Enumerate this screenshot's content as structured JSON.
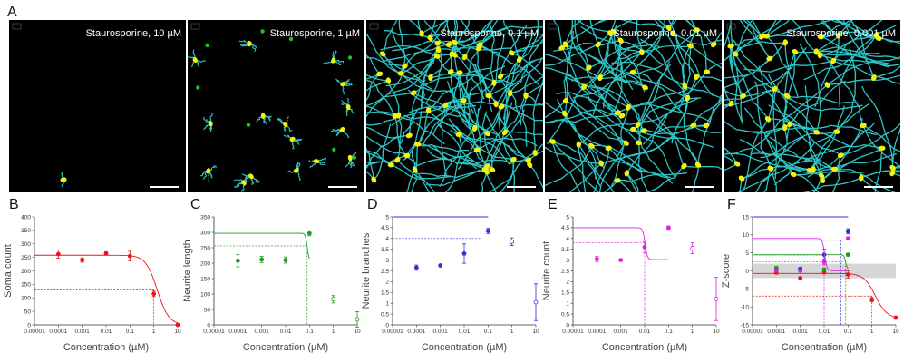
{
  "figure_letter_top": "A",
  "micrographs": [
    {
      "letter": "",
      "caption": "Staurosporine, 10 µM",
      "density": 0
    },
    {
      "letter": "",
      "caption": "Staurosporine, 1 µM",
      "density": 1
    },
    {
      "letter": "",
      "caption": "Staurosporine, 0.1 µM",
      "density": 2
    },
    {
      "letter": "",
      "caption": "Staurosporine, 0.01 µM",
      "density": 3
    },
    {
      "letter": "",
      "caption": "Staurosporine, 0.001 µM",
      "density": 4
    }
  ],
  "colors": {
    "neurite": "#2ec4c4",
    "soma": "#f2f20a",
    "nucleus": "#22c22a",
    "image_bg": "#000000",
    "red": "#e8161b",
    "green": "#1f9a1f",
    "blue": "#2b34d8",
    "magenta": "#e020e0"
  },
  "chart_data": [
    {
      "panel": "B",
      "type": "scatter",
      "ylabel": "Soma count",
      "xlabel": "Concentration (µM)",
      "x_scale": "log",
      "xticks": [
        "0.00001",
        "0.0001",
        "0.001",
        "0.01",
        "0.1",
        "1",
        "10"
      ],
      "yticks": [
        0,
        50,
        100,
        150,
        200,
        250,
        300,
        350,
        400
      ],
      "ylim": [
        0,
        400
      ],
      "series": [
        {
          "color": "#e8161b",
          "points": [
            {
              "x": 0.0001,
              "y": 262,
              "err": 15,
              "open": false
            },
            {
              "x": 0.001,
              "y": 240,
              "err": 8,
              "open": false
            },
            {
              "x": 0.01,
              "y": 265,
              "err": 5,
              "open": false
            },
            {
              "x": 0.1,
              "y": 255,
              "err": 18,
              "open": false
            },
            {
              "x": 1,
              "y": 115,
              "err": 10,
              "open": false
            },
            {
              "x": 10,
              "y": 0,
              "err": 0,
              "open": false
            }
          ],
          "fit": {
            "top": 258,
            "bottom": 0,
            "ec50": 1.4,
            "hill": 1.8
          }
        }
      ],
      "ref_lines": [
        {
          "color": "#e8161b",
          "h": 129,
          "vx": 1
        }
      ]
    },
    {
      "panel": "C",
      "type": "scatter",
      "ylabel": "Neurite length",
      "xlabel": "Concentration (µM)",
      "x_scale": "log",
      "xticks": [
        "0.00001",
        "0.0001",
        "0.001",
        "0.01",
        "0.1",
        "1",
        "10"
      ],
      "yticks": [
        0,
        50,
        100,
        150,
        200,
        250,
        300,
        350
      ],
      "ylim": [
        0,
        350
      ],
      "series": [
        {
          "color": "#1f9a1f",
          "points": [
            {
              "x": 0.0001,
              "y": 208,
              "err": 20,
              "open": false
            },
            {
              "x": 0.001,
              "y": 212,
              "err": 10,
              "open": false
            },
            {
              "x": 0.01,
              "y": 210,
              "err": 10,
              "open": false
            },
            {
              "x": 0.1,
              "y": 297,
              "err": 8,
              "open": false
            },
            {
              "x": 1,
              "y": 83,
              "err": 12,
              "open": true
            },
            {
              "x": 10,
              "y": 18,
              "err": 25,
              "open": true
            }
          ],
          "fit": {
            "top": 297,
            "bottom": 210,
            "ec50": 0.08,
            "hill": 12,
            "xmax": 0.1
          }
        }
      ],
      "ref_lines": [
        {
          "color": "#1f9a1f",
          "h": 256,
          "vx": 0.08
        }
      ]
    },
    {
      "panel": "D",
      "type": "scatter",
      "ylabel": "Neurite branches",
      "xlabel": "Concentration (µM)",
      "x_scale": "log",
      "xticks": [
        "0.00001",
        "0.0001",
        "0.001",
        "0.01",
        "0.1",
        "1",
        "10"
      ],
      "yticks": [
        0,
        0.5,
        1,
        1.5,
        2,
        2.5,
        3,
        3.5,
        4,
        4.5,
        5
      ],
      "ylim": [
        0,
        5
      ],
      "series": [
        {
          "color": "#2b34d8",
          "points": [
            {
              "x": 0.0001,
              "y": 2.65,
              "err": 0.12,
              "open": false
            },
            {
              "x": 0.001,
              "y": 2.75,
              "err": 0.04,
              "open": false
            },
            {
              "x": 0.01,
              "y": 3.3,
              "err": 0.45,
              "open": false
            },
            {
              "x": 0.1,
              "y": 4.35,
              "err": 0.12,
              "open": false
            },
            {
              "x": 1,
              "y": 3.85,
              "err": 0.18,
              "open": true
            },
            {
              "x": 10,
              "y": 1.05,
              "err": 0.85,
              "open": true
            }
          ],
          "fit": {
            "top": 6.5,
            "bottom": 2.6,
            "ec50": 0.35,
            "hill": 0.7,
            "xmax": 0.1
          }
        }
      ],
      "ref_lines": [
        {
          "color": "#2b34d8",
          "h": 4.0,
          "vx": 0.05
        }
      ]
    },
    {
      "panel": "E",
      "type": "scatter",
      "ylabel": "Neurite count",
      "xlabel": "Concentration (µM)",
      "x_scale": "log",
      "xticks": [
        "0.00001",
        "0.0001",
        "0.001",
        "0.01",
        "0.1",
        "1",
        "10"
      ],
      "yticks": [
        0,
        0.5,
        1,
        1.5,
        2,
        2.5,
        3,
        3.5,
        4,
        4.5,
        5
      ],
      "ylim": [
        0,
        5
      ],
      "series": [
        {
          "color": "#e020e0",
          "points": [
            {
              "x": 0.0001,
              "y": 3.05,
              "err": 0.12,
              "open": false
            },
            {
              "x": 0.001,
              "y": 3.0,
              "err": 0.04,
              "open": false
            },
            {
              "x": 0.01,
              "y": 3.6,
              "err": 0.25,
              "open": false
            },
            {
              "x": 0.1,
              "y": 4.5,
              "err": 0.08,
              "open": false
            },
            {
              "x": 1,
              "y": 3.55,
              "err": 0.25,
              "open": true
            },
            {
              "x": 10,
              "y": 1.2,
              "err": 1.0,
              "open": true
            }
          ],
          "fit": {
            "top": 4.5,
            "bottom": 3.02,
            "ec50": 0.0105,
            "hill": 9,
            "xmax": 0.1
          }
        }
      ],
      "ref_lines": [
        {
          "color": "#e020e0",
          "h": 3.8,
          "vx": 0.01
        }
      ]
    },
    {
      "panel": "F",
      "type": "scatter",
      "ylabel": "Z-score",
      "xlabel": "Concentration (µM)",
      "x_scale": "log",
      "xticks": [
        "0.00001",
        "0.0001",
        "0.001",
        "0.01",
        "0.1",
        "1",
        "10"
      ],
      "yticks": [
        -15,
        -10,
        -5,
        0,
        5,
        10,
        15
      ],
      "ylim": [
        -15,
        15
      ],
      "band": [
        -2,
        2
      ],
      "series": [
        {
          "color": "#e8161b",
          "points": [
            {
              "x": 0.0001,
              "y": -0.5,
              "err": 0.4,
              "open": false
            },
            {
              "x": 0.001,
              "y": -2.0,
              "err": 0.3,
              "open": false
            },
            {
              "x": 0.01,
              "y": -0.4,
              "err": 0.3,
              "open": false
            },
            {
              "x": 0.1,
              "y": -1.0,
              "err": 1.0,
              "open": false
            },
            {
              "x": 1,
              "y": -8.0,
              "err": 0.6,
              "open": false
            },
            {
              "x": 10,
              "y": -13.0,
              "err": 0.3,
              "open": false
            }
          ],
          "fit": {
            "top": -0.7,
            "bottom": -13.2,
            "ec50": 1.4,
            "hill": 1.8
          }
        },
        {
          "color": "#1f9a1f",
          "points": [
            {
              "x": 0.0001,
              "y": 0.8,
              "err": 0.5,
              "open": false
            },
            {
              "x": 0.001,
              "y": 0.3,
              "err": 0.3,
              "open": false
            },
            {
              "x": 0.01,
              "y": 0.4,
              "err": 0.3,
              "open": false
            },
            {
              "x": 0.1,
              "y": 4.5,
              "err": 0.4,
              "open": false
            }
          ],
          "fit": {
            "top": 4.5,
            "bottom": 0.4,
            "ec50": 0.08,
            "hill": 12,
            "xmax": 0.1
          }
        },
        {
          "color": "#2b34d8",
          "points": [
            {
              "x": 0.0001,
              "y": 0.2,
              "err": 0.3,
              "open": false
            },
            {
              "x": 0.001,
              "y": 0.6,
              "err": 0.3,
              "open": false
            },
            {
              "x": 0.01,
              "y": 4.5,
              "err": 1.5,
              "open": false
            },
            {
              "x": 0.1,
              "y": 11.0,
              "err": 0.7,
              "open": false
            }
          ],
          "fit": {
            "top": 24.0,
            "bottom": 0.0,
            "ec50": 0.35,
            "hill": 0.75,
            "xmax": 0.1
          }
        },
        {
          "color": "#e020e0",
          "points": [
            {
              "x": 0.0001,
              "y": 0.1,
              "err": 0.3,
              "open": false
            },
            {
              "x": 0.001,
              "y": 0.0,
              "err": 0.2,
              "open": false
            },
            {
              "x": 0.01,
              "y": 2.5,
              "err": 0.8,
              "open": false
            },
            {
              "x": 0.1,
              "y": 9.0,
              "err": 0.4,
              "open": false
            }
          ],
          "fit": {
            "top": 9.0,
            "bottom": 0.05,
            "ec50": 0.0105,
            "hill": 9,
            "xmax": 0.1
          }
        }
      ],
      "ref_lines": [
        {
          "color": "#2b34d8",
          "h": 8.5,
          "vx": 0.05
        },
        {
          "color": "#e020e0",
          "h": 4.4,
          "vx": 0.01
        },
        {
          "color": "#1f9a1f",
          "h": 2.5,
          "vx": 0.08
        },
        {
          "color": "#e8161b",
          "h": -7.0,
          "vx": 1
        }
      ]
    }
  ]
}
